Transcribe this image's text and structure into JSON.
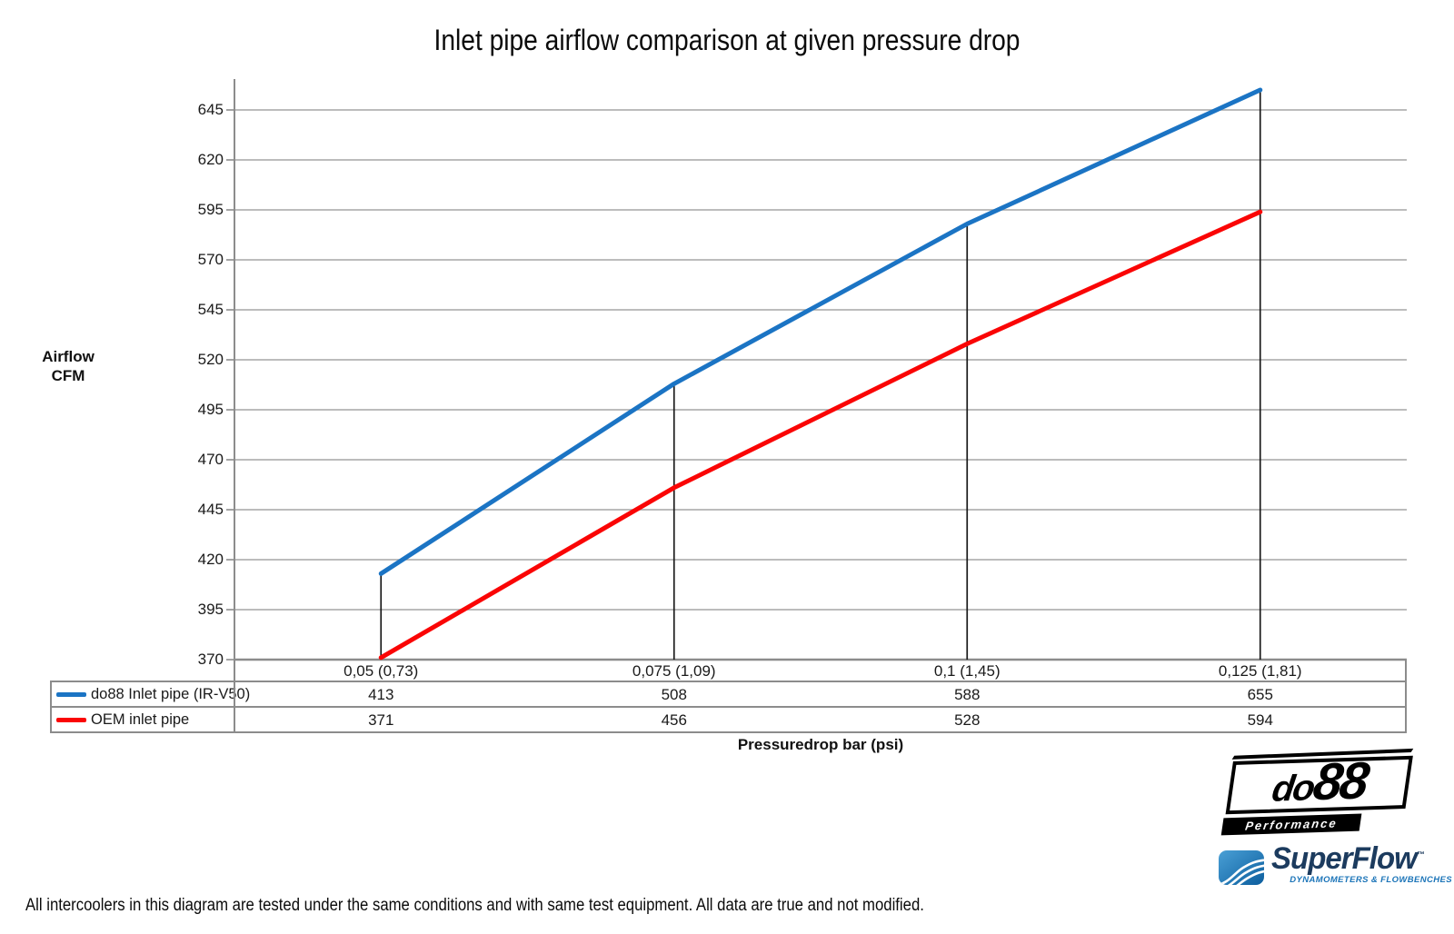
{
  "title": "Inlet pipe airflow comparison at given pressure drop",
  "y_axis": {
    "line1": "Airflow",
    "line2": "CFM"
  },
  "x_axis": {
    "label": "Pressuredrop bar (psi)"
  },
  "footer": "All intercoolers in this diagram are tested under the same conditions and with same test equipment. All data are true and not modified.",
  "colors": {
    "gridline": "#a6a6a6",
    "axis": "#8c8c8c",
    "drop_line": "#1a1a1a",
    "series_blue": "#1b74c4",
    "series_red": "#fa0505",
    "table_border": "#8c8c8c",
    "superflow_navy": "#1c3b5e",
    "superflow_blue": "#1b74b8"
  },
  "logos": {
    "do88": {
      "word_part1": "do",
      "word_part2": "88",
      "tagline": "Performance"
    },
    "superflow": {
      "name": "SuperFlow",
      "tm": "™",
      "tagline": "DYNAMOMETERS & FLOWBENCHES"
    }
  },
  "chart_data": {
    "type": "line",
    "title": "Inlet pipe airflow comparison at given pressure drop",
    "xlabel": "Pressuredrop bar (psi)",
    "ylabel": "Airflow CFM",
    "categories": [
      "0,05 (0,73)",
      "0,075 (1,09)",
      "0,1 (1,45)",
      "0,125 (1,81)"
    ],
    "series": [
      {
        "name": "do88 Inlet pipe (IR-V50)",
        "color": "#1b74c4",
        "values": [
          413,
          508,
          588,
          655
        ]
      },
      {
        "name": "OEM inlet pipe",
        "color": "#fa0505",
        "values": [
          371,
          456,
          528,
          594
        ]
      }
    ],
    "yticks": [
      370,
      395,
      420,
      445,
      470,
      495,
      520,
      545,
      570,
      595,
      620,
      645
    ],
    "ylim": [
      370,
      660
    ],
    "grid": "horizontal",
    "legend_position": "table-left",
    "drop_lines": true
  }
}
